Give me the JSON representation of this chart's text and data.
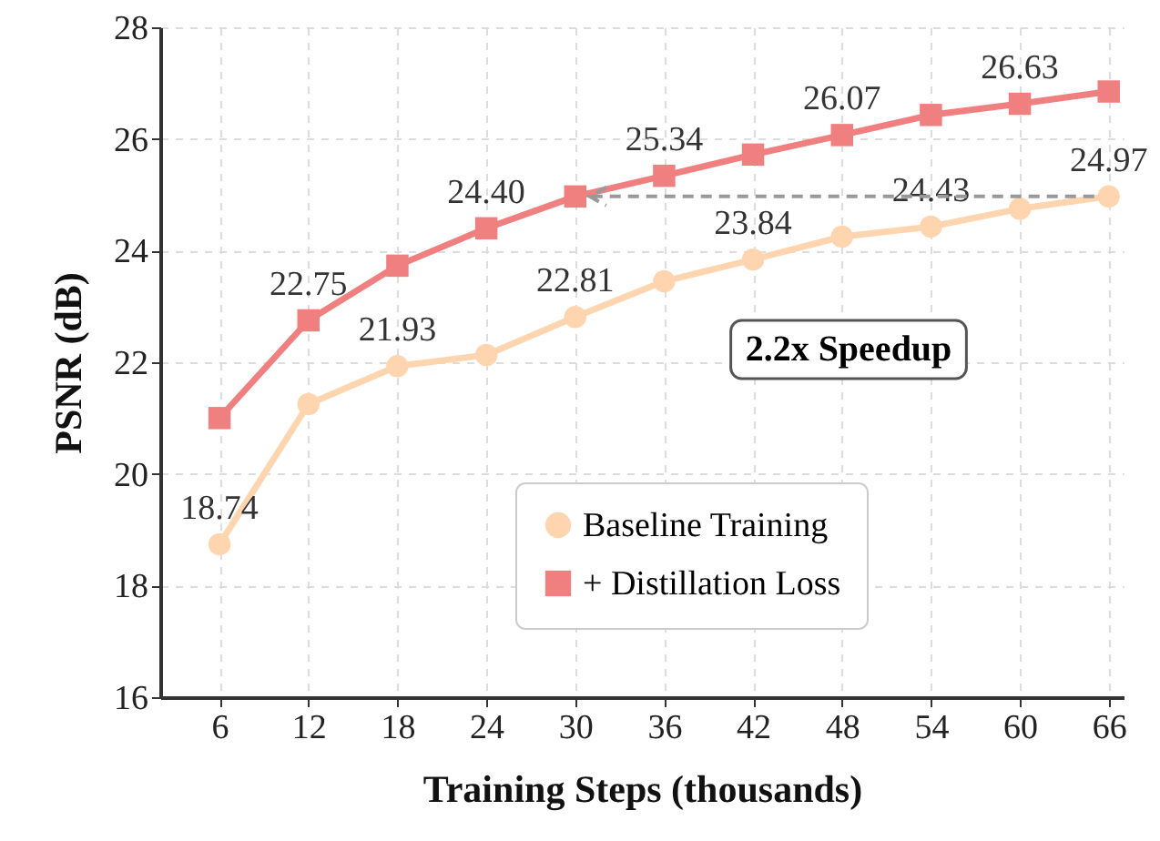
{
  "chart_data": {
    "type": "line",
    "xlabel": "Training Steps (thousands)",
    "ylabel": "PSNR (dB)",
    "x": [
      6,
      12,
      18,
      24,
      30,
      36,
      42,
      48,
      54,
      60,
      66
    ],
    "xlim": [
      2,
      67
    ],
    "xticks": [
      6,
      12,
      18,
      24,
      30,
      36,
      42,
      48,
      54,
      60,
      66
    ],
    "ylim": [
      16,
      28
    ],
    "yticks": [
      16,
      18,
      20,
      22,
      24,
      26,
      28
    ],
    "series": [
      {
        "name": "Baseline Training",
        "color": "#ffd5b0",
        "marker": "circle",
        "values": [
          18.74,
          21.25,
          21.93,
          22.13,
          22.81,
          23.45,
          23.84,
          24.25,
          24.43,
          24.75,
          24.97
        ],
        "value_labels": [
          "18.74",
          null,
          "21.93",
          null,
          "22.81",
          null,
          "23.84",
          null,
          "24.43",
          null,
          "24.97"
        ]
      },
      {
        "name": "+ Distillation Loss",
        "color": "#f08080",
        "marker": "square",
        "values": [
          21.0,
          22.75,
          23.73,
          24.4,
          24.97,
          25.34,
          25.72,
          26.07,
          26.43,
          26.63,
          26.85
        ],
        "value_labels": [
          null,
          "22.75",
          null,
          "24.40",
          null,
          "25.34",
          null,
          "26.07",
          null,
          "26.63",
          null
        ]
      }
    ],
    "annotations": [
      "2.2x Speedup"
    ],
    "grid": true,
    "legend": "bottom right"
  }
}
